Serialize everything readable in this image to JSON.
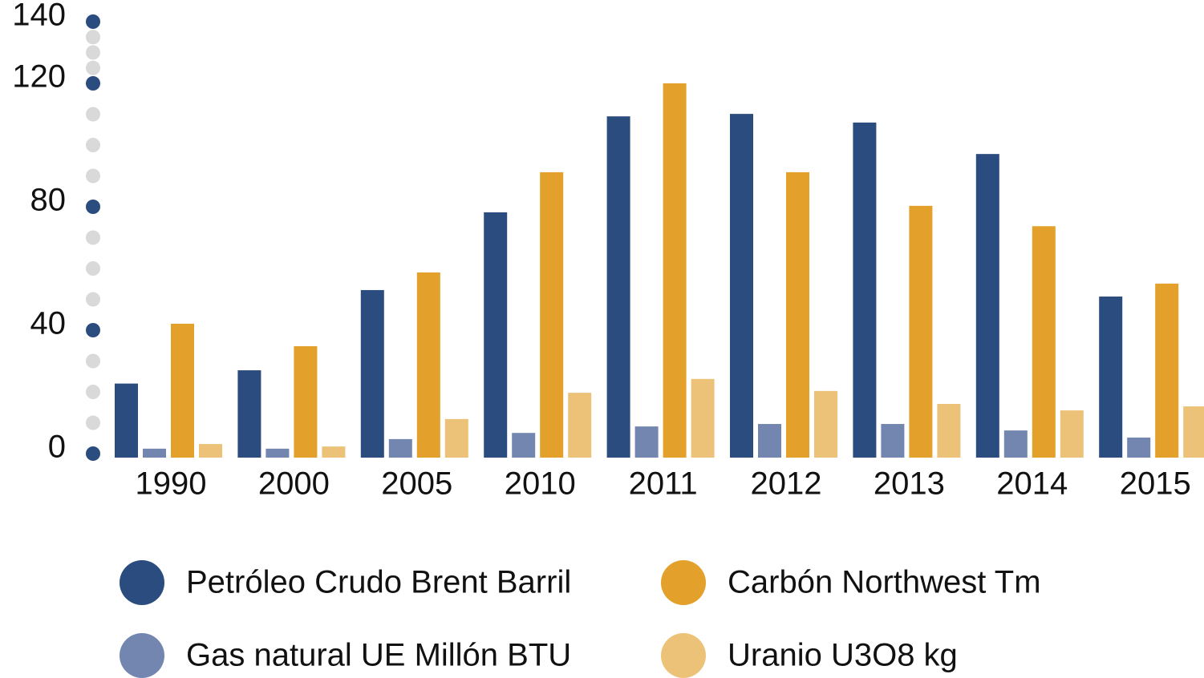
{
  "chart_data": {
    "type": "bar",
    "categories": [
      "1990",
      "2000",
      "2005",
      "2010",
      "2011",
      "2012",
      "2013",
      "2014",
      "2015"
    ],
    "series": [
      {
        "name": "Petróleo Crudo Brent Barril",
        "color": "#2b4c7e",
        "values": [
          24,
          28.3,
          54.3,
          79.5,
          110.6,
          111.4,
          108.6,
          98.4,
          52.2
        ]
      },
      {
        "name": "Gas natural UE Millón BTU",
        "color": "#7286b0",
        "values": [
          2.9,
          2.9,
          6,
          8,
          10.1,
          10.9,
          10.9,
          8.8,
          6.5
        ]
      },
      {
        "name": "Carbón Northwest Tm",
        "color": "#e3a02a",
        "values": [
          43.4,
          36.1,
          60,
          92.5,
          121.3,
          92.5,
          81.6,
          75,
          56.4
        ]
      },
      {
        "name": "Uranio U3O8 kg",
        "color": "#ecc278",
        "values": [
          4.4,
          3.6,
          12.5,
          21,
          25.5,
          21.6,
          17.4,
          15.3,
          16.6
        ]
      }
    ],
    "ylim": [
      0,
      140
    ],
    "yticks": [
      0,
      40,
      80,
      120,
      140
    ]
  }
}
